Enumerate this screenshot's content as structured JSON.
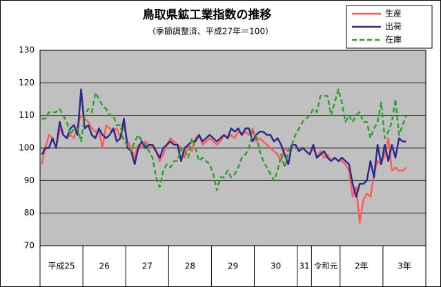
{
  "chart_data": {
    "type": "line",
    "title": "鳥取県鉱工業指数の推移",
    "subtitle": "（季節調整済、平成27年＝100）",
    "categories": [
      "平成25",
      null,
      null,
      null,
      null,
      null,
      null,
      null,
      null,
      null,
      null,
      null,
      "26",
      null,
      null,
      null,
      null,
      null,
      null,
      null,
      null,
      null,
      null,
      null,
      "27",
      null,
      null,
      null,
      null,
      null,
      null,
      null,
      null,
      null,
      null,
      null,
      "28",
      null,
      null,
      null,
      null,
      null,
      null,
      null,
      null,
      null,
      null,
      null,
      "29",
      null,
      null,
      null,
      null,
      null,
      null,
      null,
      null,
      null,
      null,
      null,
      "30",
      null,
      null,
      null,
      null,
      null,
      null,
      null,
      null,
      null,
      null,
      null,
      "31",
      null,
      null,
      null,
      "令和元",
      null,
      null,
      null,
      null,
      null,
      null,
      null,
      "2年",
      null,
      null,
      null,
      null,
      null,
      null,
      null,
      null,
      null,
      null,
      null,
      "3年",
      null,
      null,
      null,
      null,
      null,
      null,
      null,
      null,
      null,
      null,
      null
    ],
    "series": [
      {
        "name": "生産",
        "color": "#ff5a5a",
        "dash": false,
        "values": [
          95,
          100,
          104,
          103,
          100,
          106,
          104,
          103,
          104,
          103,
          107,
          110,
          109,
          108,
          106,
          105,
          105,
          100,
          107,
          106,
          105,
          106,
          103,
          107,
          102,
          100,
          97,
          101,
          100,
          102,
          101,
          100,
          99,
          96,
          98,
          101,
          103,
          102,
          101,
          100,
          97,
          101,
          99,
          103,
          104,
          101,
          102,
          103,
          102,
          101,
          102,
          104,
          103,
          104,
          103,
          105,
          104,
          105,
          104,
          106,
          102,
          103,
          102,
          101,
          100,
          99,
          98,
          96,
          100,
          99,
          101,
          101,
          99,
          100,
          99,
          98,
          100,
          97,
          99,
          97,
          98,
          96,
          97,
          96,
          96,
          95,
          93,
          85,
          88,
          77,
          84,
          86,
          85,
          92,
          96,
          95,
          98,
          103,
          93,
          94,
          93,
          93,
          94,
          null,
          null,
          null,
          null,
          null
        ]
      },
      {
        "name": "出荷",
        "color": "#2b2b8c",
        "dash": false,
        "values": [
          98,
          100,
          100,
          103,
          100,
          108,
          104,
          103,
          106,
          107,
          104,
          118,
          106,
          107,
          104,
          103,
          106,
          104,
          103,
          104,
          106,
          102,
          103,
          109,
          100,
          99,
          95,
          100,
          102,
          100,
          101,
          101,
          99,
          97,
          100,
          101,
          102,
          101,
          101,
          96,
          100,
          101,
          102,
          102,
          104,
          102,
          103,
          104,
          103,
          102,
          103,
          104,
          103,
          106,
          105,
          106,
          104,
          106,
          106,
          102,
          104,
          105,
          105,
          104,
          104,
          102,
          103,
          101,
          98,
          95,
          101,
          101,
          99,
          100,
          99,
          98,
          101,
          97,
          98,
          99,
          97,
          96,
          97,
          96,
          97,
          96,
          95,
          89,
          85,
          89,
          89,
          90,
          96,
          91,
          101,
          95,
          101,
          96,
          101,
          97,
          103,
          102,
          102,
          null,
          null,
          null,
          null,
          null
        ]
      },
      {
        "name": "在庫",
        "color": "#2ea02e",
        "dash": true,
        "values": [
          109,
          109,
          111,
          111,
          111,
          112,
          110,
          108,
          104,
          106,
          106,
          102,
          110,
          112,
          111,
          117,
          115,
          113,
          112,
          110,
          110,
          107,
          107,
          102,
          101,
          99,
          102,
          104,
          102,
          101,
          99,
          97,
          91,
          88,
          93,
          95,
          94,
          96,
          96,
          100,
          99,
          97,
          103,
          100,
          96,
          97,
          96,
          95,
          92,
          87,
          91,
          91,
          93,
          91,
          92,
          94,
          97,
          98,
          100,
          105,
          104,
          99,
          96,
          94,
          92,
          90,
          93,
          98,
          94,
          99,
          101,
          104,
          106,
          108,
          109,
          110,
          112,
          111,
          116,
          116,
          116,
          110,
          114,
          118,
          114,
          108,
          110,
          108,
          110,
          111,
          108,
          108,
          103,
          106,
          108,
          114,
          103,
          105,
          108,
          115,
          104,
          107,
          110,
          null,
          null,
          null,
          null,
          null
        ]
      }
    ],
    "ylim": [
      70,
      130
    ],
    "yticks": [
      70,
      80,
      90,
      100,
      110,
      120,
      130
    ],
    "grid": true
  }
}
